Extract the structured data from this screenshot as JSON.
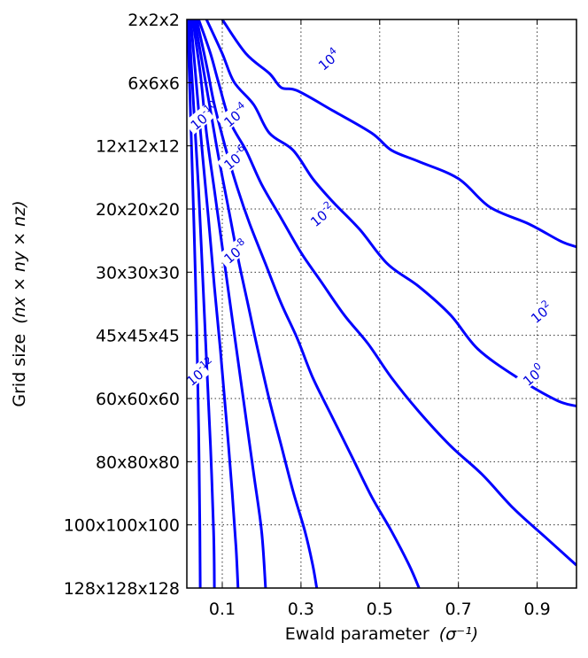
{
  "chart_data": {
    "type": "contour",
    "title": "",
    "xlabel": "Ewald parameter",
    "xlabel_unit": "(σ⁻¹)",
    "ylabel": "Grid size",
    "ylabel_math": "(nx × ny × nz)",
    "xlim": [
      0.01,
      1.0
    ],
    "x_ticks": [
      0.1,
      0.3,
      0.5,
      0.7,
      0.9
    ],
    "x_tick_labels": [
      "0.1",
      "0.3",
      "0.5",
      "0.7",
      "0.9"
    ],
    "y_categories": [
      "2x2x2",
      "6x6x6",
      "12x12x12",
      "20x20x20",
      "30x30x30",
      "45x45x45",
      "60x60x60",
      "80x80x80",
      "100x100x100",
      "128x128x128"
    ],
    "y_axis_direction": "top-to-bottom",
    "grid": true,
    "line_color": "#0000ff",
    "levels": [
      {
        "base": "10",
        "exp": "4",
        "points": [
          [
            0.1,
            0
          ],
          [
            0.16,
            0.6
          ],
          [
            0.22,
            0.95
          ],
          [
            0.25,
            1.2
          ],
          [
            0.29,
            1.25
          ],
          [
            0.38,
            1.6
          ],
          [
            0.48,
            2.0
          ],
          [
            0.53,
            2.3
          ],
          [
            0.6,
            2.5
          ],
          [
            0.7,
            2.8
          ],
          [
            0.78,
            3.3
          ],
          [
            0.88,
            3.6
          ],
          [
            0.96,
            3.9
          ],
          [
            1.0,
            4.0
          ]
        ]
      },
      {
        "base": "10",
        "exp": "2",
        "points": [
          [
            0.06,
            0
          ],
          [
            0.1,
            0.6
          ],
          [
            0.13,
            1.1
          ],
          [
            0.18,
            1.5
          ],
          [
            0.22,
            2.0
          ],
          [
            0.28,
            2.3
          ],
          [
            0.33,
            2.8
          ],
          [
            0.38,
            3.2
          ],
          [
            0.45,
            3.7
          ],
          [
            0.52,
            4.3
          ],
          [
            0.6,
            4.7
          ],
          [
            0.68,
            5.2
          ],
          [
            0.75,
            5.8
          ],
          [
            0.85,
            6.3
          ],
          [
            0.95,
            6.7
          ],
          [
            1.0,
            6.8
          ]
        ]
      },
      {
        "base": "10",
        "exp": "0",
        "points": [
          [
            0.04,
            0
          ],
          [
            0.07,
            0.6
          ],
          [
            0.09,
            1.1
          ],
          [
            0.12,
            1.8
          ],
          [
            0.16,
            2.3
          ],
          [
            0.2,
            2.9
          ],
          [
            0.25,
            3.5
          ],
          [
            0.3,
            4.1
          ],
          [
            0.35,
            4.6
          ],
          [
            0.41,
            5.2
          ],
          [
            0.47,
            5.7
          ],
          [
            0.53,
            6.3
          ],
          [
            0.6,
            6.9
          ],
          [
            0.68,
            7.5
          ],
          [
            0.76,
            8.0
          ],
          [
            0.84,
            8.6
          ],
          [
            0.92,
            9.1
          ],
          [
            1.0,
            9.6
          ]
        ]
      },
      {
        "base": "10",
        "exp": "-2",
        "points": [
          [
            0.035,
            0
          ],
          [
            0.06,
            0.8
          ],
          [
            0.08,
            1.5
          ],
          [
            0.11,
            2.3
          ],
          [
            0.14,
            3.0
          ],
          [
            0.17,
            3.6
          ],
          [
            0.21,
            4.3
          ],
          [
            0.25,
            5.0
          ],
          [
            0.29,
            5.6
          ],
          [
            0.33,
            6.3
          ],
          [
            0.38,
            7.0
          ],
          [
            0.43,
            7.7
          ],
          [
            0.48,
            8.4
          ],
          [
            0.53,
            9.0
          ],
          [
            0.575,
            9.6
          ],
          [
            0.6,
            10.0
          ]
        ]
      },
      {
        "base": "10",
        "exp": "-4",
        "points": [
          [
            0.03,
            0
          ],
          [
            0.05,
            0.8
          ],
          [
            0.07,
            1.6
          ],
          [
            0.09,
            2.4
          ],
          [
            0.115,
            3.3
          ],
          [
            0.14,
            4.2
          ],
          [
            0.165,
            5.0
          ],
          [
            0.19,
            5.8
          ],
          [
            0.22,
            6.7
          ],
          [
            0.25,
            7.5
          ],
          [
            0.28,
            8.3
          ],
          [
            0.31,
            9.0
          ],
          [
            0.33,
            9.6
          ],
          [
            0.34,
            10.0
          ]
        ]
      },
      {
        "base": "10",
        "exp": "-6",
        "points": [
          [
            0.025,
            0
          ],
          [
            0.045,
            1.0
          ],
          [
            0.06,
            2.0
          ],
          [
            0.08,
            3.0
          ],
          [
            0.1,
            4.0
          ],
          [
            0.12,
            5.0
          ],
          [
            0.14,
            6.0
          ],
          [
            0.16,
            7.0
          ],
          [
            0.18,
            8.0
          ],
          [
            0.2,
            9.0
          ],
          [
            0.21,
            10.0
          ]
        ]
      },
      {
        "base": "10",
        "exp": "-8",
        "points": [
          [
            0.02,
            0
          ],
          [
            0.035,
            1.2
          ],
          [
            0.05,
            2.4
          ],
          [
            0.065,
            3.5
          ],
          [
            0.08,
            4.7
          ],
          [
            0.095,
            5.8
          ],
          [
            0.11,
            7.0
          ],
          [
            0.125,
            8.3
          ],
          [
            0.135,
            9.3
          ],
          [
            0.14,
            10.0
          ]
        ]
      },
      {
        "base": "10",
        "exp": "-10",
        "points": [
          [
            0.015,
            0
          ],
          [
            0.027,
            1.5
          ],
          [
            0.04,
            3.0
          ],
          [
            0.05,
            4.5
          ],
          [
            0.06,
            6.0
          ],
          [
            0.07,
            7.5
          ],
          [
            0.078,
            9.0
          ],
          [
            0.08,
            10.0
          ]
        ]
      },
      {
        "base": "10",
        "exp": "-12",
        "points": [
          [
            0.012,
            0
          ],
          [
            0.02,
            1.8
          ],
          [
            0.028,
            3.6
          ],
          [
            0.035,
            5.4
          ],
          [
            0.04,
            7.2
          ],
          [
            0.043,
            9.0
          ],
          [
            0.044,
            10.0
          ]
        ]
      }
    ],
    "level_labels": [
      {
        "level": 0,
        "at": [
          0.37,
          0.75
        ]
      },
      {
        "level": 1,
        "at": [
          0.91,
          5.2
        ]
      },
      {
        "level": 2,
        "at": [
          0.89,
          6.3
        ]
      },
      {
        "level": 3,
        "at": [
          0.35,
          3.5
        ]
      },
      {
        "level": 4,
        "at": [
          0.13,
          1.75
        ]
      },
      {
        "level": 5,
        "at": [
          0.13,
          2.5
        ]
      },
      {
        "level": 6,
        "at": [
          0.13,
          4.15
        ]
      },
      {
        "level": 7,
        "at": [
          0.045,
          1.8
        ]
      },
      {
        "level": 8,
        "at": [
          0.035,
          6.3
        ]
      }
    ]
  }
}
